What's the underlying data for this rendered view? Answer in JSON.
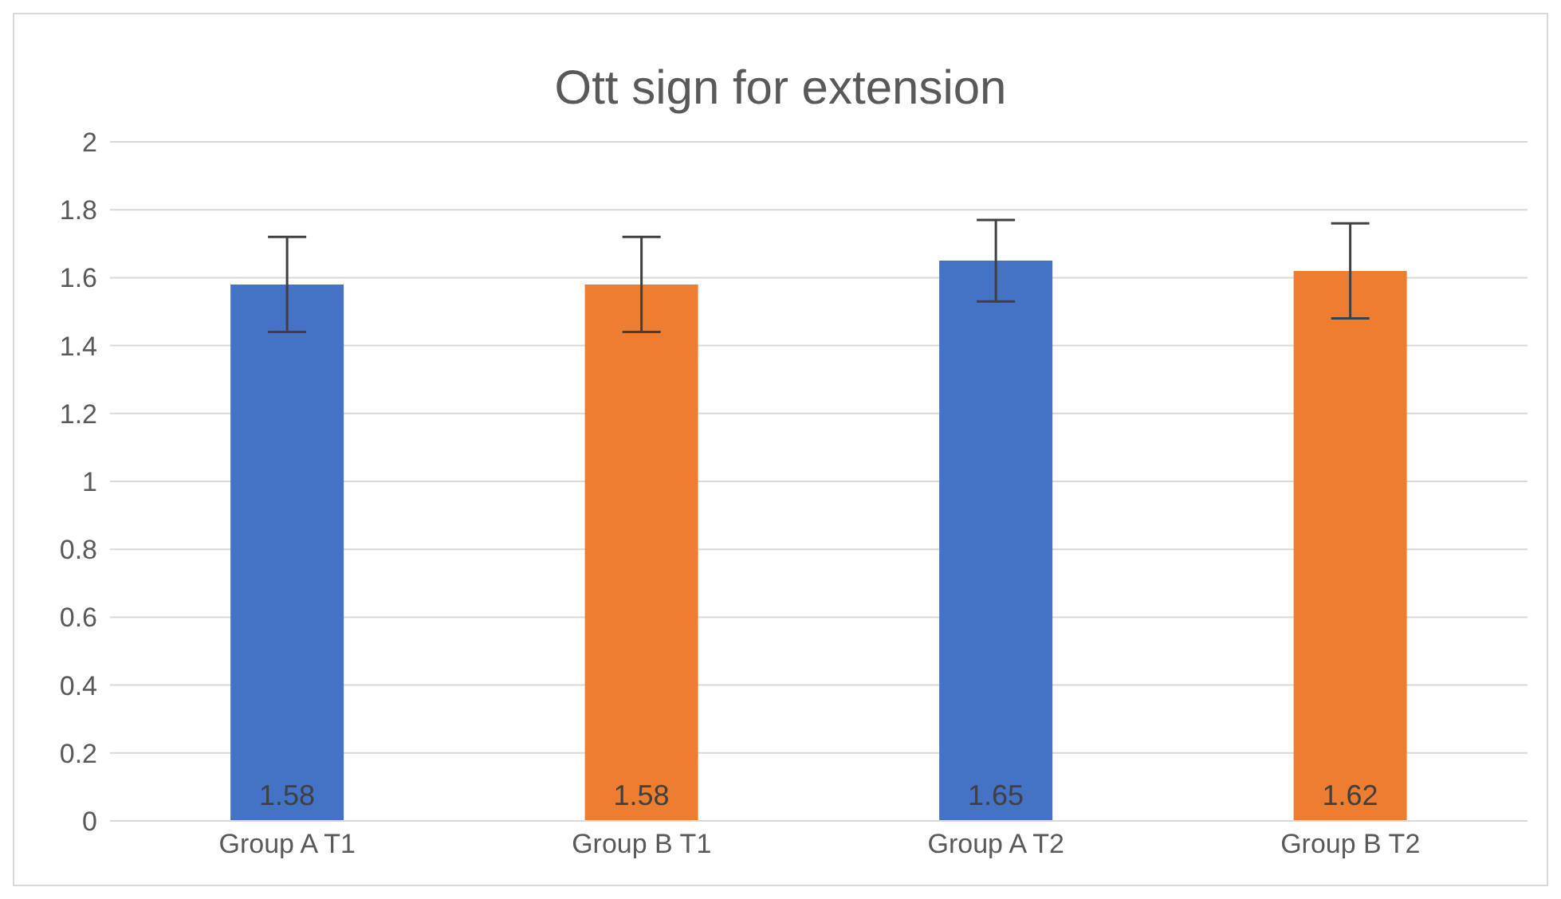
{
  "chart_data": {
    "type": "bar",
    "title": "Ott sign for extension",
    "categories": [
      "Group A T1",
      "Group B T1",
      "Group A T2",
      "Group B T2"
    ],
    "values": [
      1.58,
      1.58,
      1.65,
      1.62
    ],
    "colors": [
      "#4472c4",
      "#ed7d31",
      "#4472c4",
      "#ed7d31"
    ],
    "errors": [
      0.14,
      0.14,
      0.12,
      0.14
    ],
    "data_labels": true,
    "ylim": [
      0,
      2
    ],
    "yticks": [
      0,
      0.2,
      0.4,
      0.6,
      0.8,
      1,
      1.2,
      1.4,
      1.6,
      1.8,
      2
    ],
    "grid": "y",
    "legend": false
  }
}
